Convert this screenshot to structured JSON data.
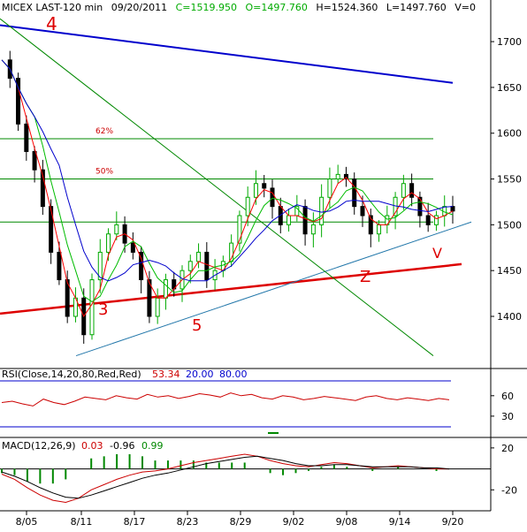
{
  "header": {
    "symbol": "MICEX LAST-120 min",
    "date": "09/20/2011",
    "close": "C=1519.950",
    "open": "O=1497.760",
    "high": "H=1524.360",
    "low": "L=1497.760",
    "volume": "V=0"
  },
  "colors": {
    "up_candle": "#00aa00",
    "down_candle": "#000000",
    "ma_fast": "#ff0000",
    "ma_mid": "#00bb00",
    "ma_slow": "#0000cc",
    "trend_blue": "#0000cc",
    "trend_red": "#dd0000",
    "trend_green": "#008800",
    "trend_teal": "#2277aa",
    "annotation": "#dd0000",
    "rsi_line": "#cc0000",
    "macd_line": "#cc0000",
    "signal_line": "#000000",
    "histogram": "#008800"
  },
  "annotations": {
    "label_4": "4",
    "label_3": "3",
    "label_5": "5",
    "label_z": "Z",
    "label_v": "V"
  },
  "fib": {
    "level_62": "62%",
    "level_50": "50%"
  },
  "rsi_panel": {
    "title": "RSI(Close,14,20,80,Red,Red)",
    "value": "53.34",
    "low": "20.00",
    "high": "80.00"
  },
  "macd_panel": {
    "title": "MACD(12,26,9)",
    "v1": "0.03",
    "v2": "-0.96",
    "v3": "0.99"
  },
  "chart_data": {
    "type": "candlestick",
    "y_ticks": [
      1400,
      1450,
      1500,
      1550,
      1600,
      1650,
      1700
    ],
    "ylim": [
      1345,
      1730
    ],
    "x_tick_labels": [
      "8/05",
      "8/11",
      "8/17",
      "8/23",
      "8/29",
      "9/02",
      "9/08",
      "9/14",
      "9/20"
    ],
    "fib_levels": [
      {
        "label": "62%",
        "value": 1594
      },
      {
        "value": 1550
      },
      {
        "label": "50%",
        "value": 1550
      },
      {
        "value": 1503
      }
    ],
    "trendlines": [
      {
        "name": "4",
        "from": [
          0,
          1718
        ],
        "to": [
          1,
          1655
        ]
      },
      {
        "name": "3",
        "from": [
          0,
          1403
        ],
        "to": [
          1,
          1457
        ]
      },
      {
        "name": "5",
        "from": [
          0.155,
          1357
        ],
        "to": [
          1,
          1503
        ]
      },
      {
        "name": "down",
        "from": [
          0,
          1725
        ],
        "to": [
          0.95,
          1357
        ]
      }
    ],
    "close_path": [
      1680,
      1660,
      1610,
      1580,
      1560,
      1520,
      1470,
      1440,
      1400,
      1420,
      1380,
      1440,
      1470,
      1490,
      1500,
      1480,
      1470,
      1440,
      1400,
      1420,
      1440,
      1430,
      1450,
      1460,
      1470,
      1440,
      1450,
      1460,
      1480,
      1510,
      1530,
      1545,
      1540,
      1520,
      1500,
      1510,
      1520,
      1490,
      1500,
      1530,
      1550,
      1555,
      1550,
      1520,
      1510,
      1490,
      1500,
      1510,
      1530,
      1545,
      1530,
      1510,
      1500,
      1510,
      1520,
      1515
    ],
    "rsi": {
      "ylim": [
        0,
        100
      ],
      "ticks": [
        30,
        60
      ],
      "values": [
        50,
        52,
        48,
        45,
        55,
        50,
        47,
        52,
        58,
        56,
        54,
        60,
        57,
        55,
        62,
        58,
        60,
        56,
        59,
        63,
        61,
        58,
        64,
        60,
        62,
        57,
        55,
        60,
        58,
        54,
        56,
        59,
        57,
        55,
        53,
        58,
        60,
        56,
        54,
        57,
        55,
        53,
        56,
        54
      ]
    },
    "macd": {
      "ylim": [
        -40,
        30
      ],
      "ticks": [
        20,
        -20
      ],
      "macd": [
        -5,
        -10,
        -18,
        -25,
        -30,
        -32,
        -28,
        -20,
        -15,
        -10,
        -6,
        -3,
        -2,
        0,
        3,
        6,
        8,
        10,
        12,
        14,
        12,
        8,
        5,
        3,
        2,
        4,
        6,
        5,
        3,
        1,
        2,
        3,
        2,
        1,
        0,
        0
      ],
      "signal": [
        -3,
        -7,
        -12,
        -18,
        -23,
        -27,
        -28,
        -25,
        -21,
        -17,
        -13,
        -9,
        -6,
        -4,
        -1,
        2,
        5,
        7,
        9,
        11,
        12,
        10,
        8,
        5,
        3,
        3,
        4,
        4,
        3,
        2,
        2,
        2,
        2,
        1,
        1,
        0
      ]
    }
  }
}
